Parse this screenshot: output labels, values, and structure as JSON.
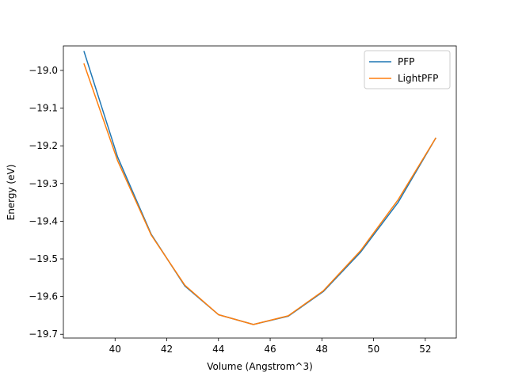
{
  "chart_data": {
    "type": "line",
    "title": "",
    "xlabel": "Volume (Angstrom^3)",
    "ylabel": "Energy (eV)",
    "xlim": [
      38.0,
      53.2
    ],
    "ylim": [
      -19.71,
      -18.935
    ],
    "xticks": [
      40,
      42,
      44,
      46,
      48,
      50,
      52
    ],
    "yticks": [
      -19.0,
      -19.1,
      -19.2,
      -19.3,
      -19.4,
      -19.5,
      -19.6,
      -19.7
    ],
    "grid": false,
    "legend_position": "top-right",
    "x": [
      38.8,
      40.1,
      41.4,
      42.7,
      44.0,
      45.35,
      46.7,
      48.05,
      49.5,
      50.95,
      52.4
    ],
    "series": [
      {
        "name": "PFP",
        "color": "#1f77b4",
        "values": [
          -18.95,
          -19.23,
          -19.435,
          -19.572,
          -19.648,
          -19.674,
          -19.652,
          -19.587,
          -19.482,
          -19.35,
          -19.18
        ]
      },
      {
        "name": "LightPFP",
        "color": "#ff7f0e",
        "values": [
          -18.983,
          -19.24,
          -19.437,
          -19.57,
          -19.648,
          -19.674,
          -19.651,
          -19.585,
          -19.478,
          -19.343,
          -19.18
        ]
      }
    ]
  }
}
